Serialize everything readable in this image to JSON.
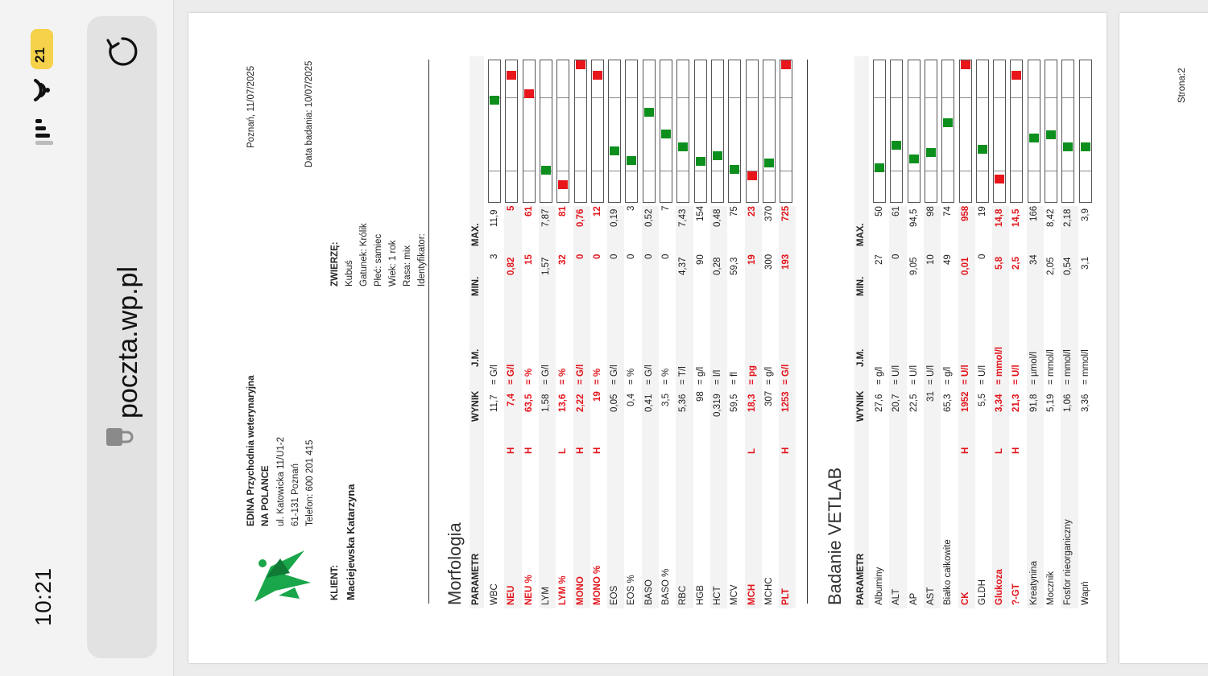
{
  "status_bar": {
    "time": "10:21",
    "battery": "21"
  },
  "browser": {
    "url": "poczta.wp.pl"
  },
  "clinic": {
    "name1": "EDINA Przychodnia weterynaryjna",
    "name2": "NA POLANCE",
    "address": "ul. Katowicka 11/U1-2",
    "city": "61-131 Poznań",
    "phone": "Telefon: 600 201 415"
  },
  "place_date": "Poznań, 11/07/2025",
  "exam_date": "Data badania: 10/07/2025",
  "client": {
    "label": "KLIENT:",
    "name": "Maciejewska Katarzyna"
  },
  "animal": {
    "label": "ZWIERZĘ:",
    "name": "Kubuś",
    "species": "Gatunek: Królik",
    "sex": "Płeć: samiec",
    "age": "Wiek: 1 rok",
    "breed": "Rasa: mix",
    "id": "Identyfikator:"
  },
  "page_label": "Strona:2",
  "columns": {
    "param": "PARAMETR",
    "result": "WYNIK",
    "unit": "J.M.",
    "min": "MIN.",
    "max": "MAX."
  },
  "sections": [
    {
      "title": "Morfologia",
      "rows": [
        {
          "param": "WBC",
          "flag": "",
          "result": "11,7",
          "unit": "G/l",
          "min": "3",
          "max": "11,9",
          "abn": false,
          "pos": 0.96
        },
        {
          "param": "NEU",
          "flag": "H",
          "result": "7,4",
          "unit": "G/l",
          "min": "0,82",
          "max": "5",
          "abn": true,
          "pos": 1.3
        },
        {
          "param": "NEU %",
          "flag": "H",
          "result": "63,5",
          "unit": "%",
          "min": "15",
          "max": "61",
          "abn": true,
          "pos": 1.05
        },
        {
          "param": "LYM",
          "flag": "",
          "result": "1,58",
          "unit": "G/l",
          "min": "1,57",
          "max": "7,87",
          "abn": false,
          "pos": 0.0
        },
        {
          "param": "LYM %",
          "flag": "L",
          "result": "13,6",
          "unit": "%",
          "min": "32",
          "max": "81",
          "abn": true,
          "pos": -0.2
        },
        {
          "param": "MONO",
          "flag": "H",
          "result": "2,22",
          "unit": "G/l",
          "min": "0",
          "max": "0,76",
          "abn": true,
          "pos": 1.5
        },
        {
          "param": "MONO %",
          "flag": "H",
          "result": "19",
          "unit": "%",
          "min": "0",
          "max": "12",
          "abn": true,
          "pos": 1.3
        },
        {
          "param": "EOS",
          "flag": "",
          "result": "0,05",
          "unit": "G/l",
          "min": "0",
          "max": "0,19",
          "abn": false,
          "pos": 0.26
        },
        {
          "param": "EOS %",
          "flag": "",
          "result": "0,4",
          "unit": "%",
          "min": "0",
          "max": "3",
          "abn": false,
          "pos": 0.13
        },
        {
          "param": "BASO",
          "flag": "",
          "result": "0,41",
          "unit": "G/l",
          "min": "0",
          "max": "0,52",
          "abn": false,
          "pos": 0.79
        },
        {
          "param": "BASO %",
          "flag": "",
          "result": "3,5",
          "unit": "%",
          "min": "0",
          "max": "7",
          "abn": false,
          "pos": 0.5
        },
        {
          "param": "RBC",
          "flag": "",
          "result": "5,36",
          "unit": "T/l",
          "min": "4,37",
          "max": "7,43",
          "abn": false,
          "pos": 0.32
        },
        {
          "param": "HGB",
          "flag": "",
          "result": "98",
          "unit": "g/l",
          "min": "90",
          "max": "154",
          "abn": false,
          "pos": 0.12
        },
        {
          "param": "HCT",
          "flag": "",
          "result": "0,319",
          "unit": "l/l",
          "min": "0,28",
          "max": "0,48",
          "abn": false,
          "pos": 0.2
        },
        {
          "param": "MCV",
          "flag": "",
          "result": "59,5",
          "unit": "fl",
          "min": "59,3",
          "max": "75",
          "abn": false,
          "pos": 0.01
        },
        {
          "param": "MCH",
          "flag": "L",
          "result": "18,3",
          "unit": "pg",
          "min": "19",
          "max": "23",
          "abn": true,
          "pos": -0.08
        },
        {
          "param": "MCHC",
          "flag": "",
          "result": "307",
          "unit": "g/l",
          "min": "300",
          "max": "370",
          "abn": false,
          "pos": 0.1
        },
        {
          "param": "PLT",
          "flag": "H",
          "result": "1253",
          "unit": "G/l",
          "min": "193",
          "max": "725",
          "abn": true,
          "pos": 1.5
        }
      ]
    },
    {
      "title": "Badanie VETLAB",
      "rows": [
        {
          "param": "Albuminy",
          "flag": "",
          "result": "27,6",
          "unit": "g/l",
          "min": "27",
          "max": "50",
          "abn": false,
          "pos": 0.03
        },
        {
          "param": "ALT",
          "flag": "",
          "result": "20,7",
          "unit": "U/l",
          "min": "0",
          "max": "61",
          "abn": false,
          "pos": 0.34
        },
        {
          "param": "AP",
          "flag": "",
          "result": "22,5",
          "unit": "U/l",
          "min": "9,05",
          "max": "94,5",
          "abn": false,
          "pos": 0.16
        },
        {
          "param": "AST",
          "flag": "",
          "result": "31",
          "unit": "U/l",
          "min": "10",
          "max": "98",
          "abn": false,
          "pos": 0.24
        },
        {
          "param": "Białko całkowite",
          "flag": "",
          "result": "65,3",
          "unit": "g/l",
          "min": "49",
          "max": "74",
          "abn": false,
          "pos": 0.65
        },
        {
          "param": "CK",
          "flag": "H",
          "result": "1952",
          "unit": "U/l",
          "min": "0,01",
          "max": "958",
          "abn": true,
          "pos": 1.5
        },
        {
          "param": "GLDH",
          "flag": "",
          "result": "5,5",
          "unit": "U/l",
          "min": "0",
          "max": "19",
          "abn": false,
          "pos": 0.29
        },
        {
          "param": "Glukoza",
          "flag": "L",
          "result": "3,34",
          "unit": "mmol/l",
          "min": "5,8",
          "max": "14,8",
          "abn": true,
          "pos": -0.12
        },
        {
          "param": "?-GT",
          "flag": "H",
          "result": "21,3",
          "unit": "U/l",
          "min": "2,5",
          "max": "14,5",
          "abn": true,
          "pos": 1.3
        },
        {
          "param": "Kreatynina",
          "flag": "",
          "result": "91,8",
          "unit": "µmol/l",
          "min": "34",
          "max": "166",
          "abn": false,
          "pos": 0.44
        },
        {
          "param": "Mocznik",
          "flag": "",
          "result": "5,19",
          "unit": "mmol/l",
          "min": "2,05",
          "max": "8,42",
          "abn": false,
          "pos": 0.49
        },
        {
          "param": "Fosfor nieorganiczny",
          "flag": "",
          "result": "1,06",
          "unit": "mmol/l",
          "min": "0,54",
          "max": "2,18",
          "abn": false,
          "pos": 0.32
        },
        {
          "param": "Wapń",
          "flag": "",
          "result": "3,36",
          "unit": "mmol/l",
          "min": "3,1",
          "max": "3,9",
          "abn": false,
          "pos": 0.32
        }
      ]
    }
  ]
}
